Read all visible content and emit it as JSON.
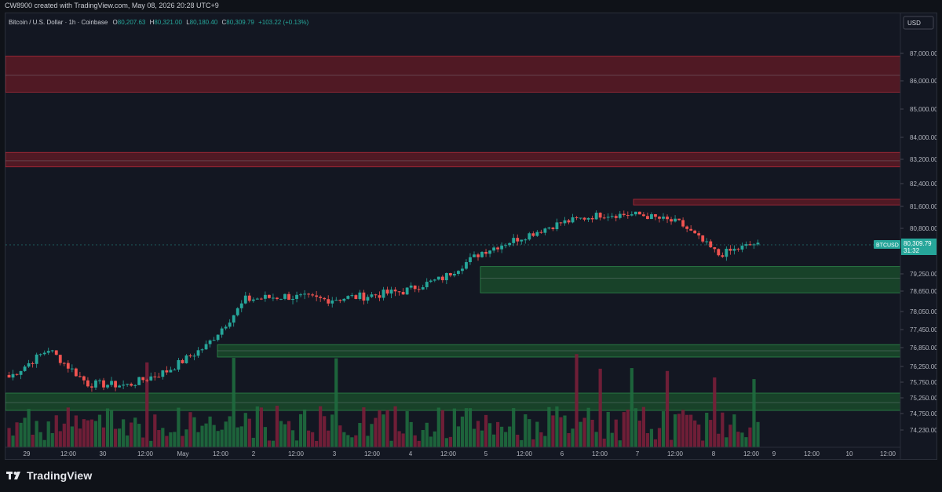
{
  "header": {
    "credit": "CW8900 created with TradingView.com, May 08, 2026 20:28 UTC+9"
  },
  "branding": {
    "logo_text": "TradingView",
    "logo_icon": "tradingview-logo-icon"
  },
  "colors": {
    "background": "#131722",
    "bull": "#26a69a",
    "bear": "#ef5350",
    "resistance_zone": "#5a1a22",
    "support_zone": "#1b4d2b",
    "price_label_bg": "#26a69a"
  },
  "legend": {
    "symbol": "Bitcoin / U.S. Dollar · 1h · Coinbase",
    "open_label": "O",
    "open": "80,207.63",
    "high_label": "H",
    "high": "80,321.00",
    "low_label": "L",
    "low": "80,180.40",
    "close_label": "C",
    "close": "80,309.79",
    "change": "+103.22 (+0.13%)"
  },
  "currency": "USD",
  "price_axis": {
    "ticks": [
      "87,000.00",
      "86,000.00",
      "85,000.00",
      "84,000.00",
      "83,200.00",
      "82,400.00",
      "81,600.00",
      "80,800.00",
      "79,250.00",
      "78,650.00",
      "78,050.00",
      "77,450.00",
      "76,850.00",
      "76,250.00",
      "75,750.00",
      "75,250.00",
      "74,750.00",
      "74,230.00"
    ]
  },
  "time_axis": {
    "labels": [
      "29",
      "12:00",
      "30",
      "12:00",
      "May",
      "12:00",
      "2",
      "12:00",
      "3",
      "12:00",
      "4",
      "12:00",
      "5",
      "12:00",
      "6",
      "12:00",
      "7",
      "12:00",
      "8",
      "12:00",
      "9",
      "12:00",
      "10",
      "12:00"
    ]
  },
  "current_price": {
    "symbol_tag": "BTCUSD",
    "price": "80,309.79",
    "countdown": "31:32"
  },
  "chart_data": {
    "type": "candlestick",
    "title": "Bitcoin / U.S. Dollar · 1h · Coinbase",
    "series": [
      {
        "name": "BTCUSD",
        "values": [
          {
            "x": "29",
            "close": 75900
          },
          {
            "x": "29 12:00",
            "close": 76800
          },
          {
            "x": "30",
            "close": 75700
          },
          {
            "x": "30 12:00",
            "close": 75650
          },
          {
            "x": "May 1",
            "close": 76100
          },
          {
            "x": "May 1 12:00",
            "close": 76900
          },
          {
            "x": "2",
            "close": 78400
          },
          {
            "x": "2 12:00",
            "close": 78500
          },
          {
            "x": "3",
            "close": 78400
          },
          {
            "x": "3 12:00",
            "close": 78500
          },
          {
            "x": "4",
            "close": 78650
          },
          {
            "x": "4 12:00",
            "close": 79100
          },
          {
            "x": "5",
            "close": 80000
          },
          {
            "x": "5 12:00",
            "close": 80500
          },
          {
            "x": "6",
            "close": 81000
          },
          {
            "x": "6 12:00",
            "close": 81300
          },
          {
            "x": "7",
            "close": 81300
          },
          {
            "x": "7 12:00",
            "close": 81000
          },
          {
            "x": "8",
            "close": 79900
          },
          {
            "x": "8 latest",
            "close": 80309.79
          }
        ]
      }
    ],
    "zones": [
      {
        "kind": "resistance",
        "from": 85600,
        "to": 86900,
        "midline": 86200
      },
      {
        "kind": "resistance",
        "from": 82950,
        "to": 83450,
        "midline": 83150
      },
      {
        "kind": "resistance",
        "from": 81650,
        "to": 81850
      },
      {
        "kind": "support",
        "from": 78600,
        "to": 79500,
        "midline": 79100
      },
      {
        "kind": "support",
        "from": 76550,
        "to": 76950,
        "midline": 76750
      },
      {
        "kind": "support",
        "from": 74850,
        "to": 75400,
        "midline": 75100
      }
    ],
    "y_axis": {
      "scale": "linear",
      "range": [
        74000,
        87500
      ]
    },
    "grid": false,
    "legend": "top-left"
  }
}
